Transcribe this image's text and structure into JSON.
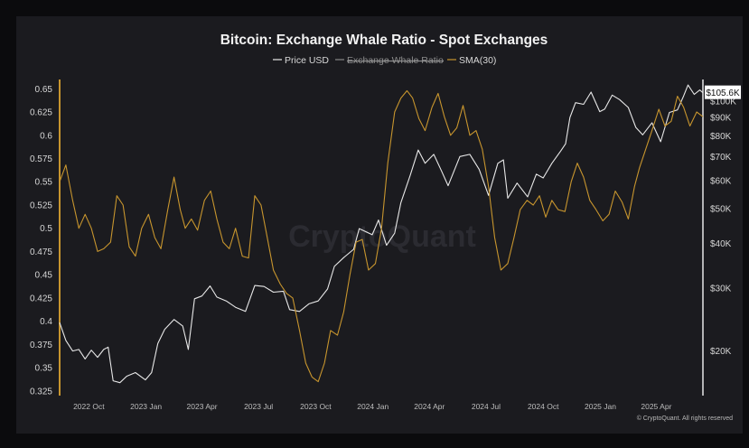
{
  "chart_data": {
    "type": "line",
    "title": "Bitcoin: Exchange Whale Ratio - Spot Exchanges",
    "legend": {
      "placement": "top-center",
      "items": [
        {
          "label": "Price USD",
          "color": "#e8e8e8",
          "struck": false
        },
        {
          "label": "Exchange Whale Ratio",
          "color": "#7a7a7a",
          "struck": true
        },
        {
          "label": "SMA(30)",
          "color": "#c7952e",
          "struck": false
        }
      ]
    },
    "x_axis": {
      "type": "date",
      "range": [
        "2022-08-15",
        "2025-06-15"
      ],
      "ticks": [
        {
          "date": "2022-10-01",
          "label": "2022 Oct"
        },
        {
          "date": "2023-01-01",
          "label": "2023 Jan"
        },
        {
          "date": "2023-04-01",
          "label": "2023 Apr"
        },
        {
          "date": "2023-07-01",
          "label": "2023 Jul"
        },
        {
          "date": "2023-10-01",
          "label": "2023 Oct"
        },
        {
          "date": "2024-01-01",
          "label": "2024 Jan"
        },
        {
          "date": "2024-04-01",
          "label": "2024 Apr"
        },
        {
          "date": "2024-07-01",
          "label": "2024 Jul"
        },
        {
          "date": "2024-10-01",
          "label": "2024 Oct"
        },
        {
          "date": "2025-01-01",
          "label": "2025 Jan"
        },
        {
          "date": "2025-04-01",
          "label": "2025 Apr"
        }
      ]
    },
    "y_left": {
      "label": "",
      "range": [
        0.32,
        0.66
      ],
      "ticks": [
        "0.65",
        "0.625",
        "0.6",
        "0.575",
        "0.55",
        "0.525",
        "0.5",
        "0.475",
        "0.45",
        "0.425",
        "0.4",
        "0.375",
        "0.35",
        "0.325"
      ]
    },
    "y_right": {
      "label": "",
      "scale": "log",
      "range": [
        15000,
        115000
      ],
      "ticks": [
        {
          "value": 20000,
          "label": "$20K"
        },
        {
          "value": 30000,
          "label": "$30K"
        },
        {
          "value": 40000,
          "label": "$40K"
        },
        {
          "value": 50000,
          "label": "$50K"
        },
        {
          "value": 60000,
          "label": "$60K"
        },
        {
          "value": 70000,
          "label": "$70K"
        },
        {
          "value": 80000,
          "label": "$80K"
        },
        {
          "value": 90000,
          "label": "$90K"
        },
        {
          "value": 100000,
          "label": "$100K"
        }
      ],
      "current_label": "$105.6K",
      "current_value": 105600
    },
    "grid": false,
    "series": [
      {
        "name": "Price USD",
        "axis": "right",
        "color": "#e8e8e8",
        "points": [
          [
            "2022-08-15",
            24000
          ],
          [
            "2022-08-25",
            21400
          ],
          [
            "2022-09-05",
            20000
          ],
          [
            "2022-09-15",
            20200
          ],
          [
            "2022-09-25",
            19000
          ],
          [
            "2022-10-05",
            20100
          ],
          [
            "2022-10-15",
            19200
          ],
          [
            "2022-10-25",
            20200
          ],
          [
            "2022-11-01",
            20500
          ],
          [
            "2022-11-09",
            16500
          ],
          [
            "2022-11-20",
            16300
          ],
          [
            "2022-12-01",
            17000
          ],
          [
            "2022-12-15",
            17400
          ],
          [
            "2022-12-31",
            16600
          ],
          [
            "2023-01-10",
            17400
          ],
          [
            "2023-01-20",
            21000
          ],
          [
            "2023-01-31",
            23000
          ],
          [
            "2023-02-15",
            24500
          ],
          [
            "2023-03-01",
            23500
          ],
          [
            "2023-03-10",
            20200
          ],
          [
            "2023-03-20",
            28000
          ],
          [
            "2023-04-01",
            28500
          ],
          [
            "2023-04-14",
            30400
          ],
          [
            "2023-04-25",
            28300
          ],
          [
            "2023-05-10",
            27600
          ],
          [
            "2023-05-25",
            26500
          ],
          [
            "2023-06-10",
            25800
          ],
          [
            "2023-06-25",
            30500
          ],
          [
            "2023-07-10",
            30300
          ],
          [
            "2023-07-25",
            29200
          ],
          [
            "2023-08-10",
            29400
          ],
          [
            "2023-08-20",
            26100
          ],
          [
            "2023-09-05",
            25800
          ],
          [
            "2023-09-20",
            27100
          ],
          [
            "2023-10-05",
            27600
          ],
          [
            "2023-10-20",
            29800
          ],
          [
            "2023-10-31",
            34500
          ],
          [
            "2023-11-15",
            36500
          ],
          [
            "2023-12-01",
            38500
          ],
          [
            "2023-12-10",
            44000
          ],
          [
            "2023-12-31",
            42300
          ],
          [
            "2024-01-10",
            46500
          ],
          [
            "2024-01-23",
            39500
          ],
          [
            "2024-02-05",
            42700
          ],
          [
            "2024-02-15",
            52000
          ],
          [
            "2024-03-01",
            62000
          ],
          [
            "2024-03-14",
            73000
          ],
          [
            "2024-03-25",
            67000
          ],
          [
            "2024-04-08",
            71000
          ],
          [
            "2024-04-20",
            64000
          ],
          [
            "2024-05-01",
            58000
          ],
          [
            "2024-05-20",
            70000
          ],
          [
            "2024-06-05",
            71000
          ],
          [
            "2024-06-20",
            64500
          ],
          [
            "2024-07-05",
            54500
          ],
          [
            "2024-07-20",
            67000
          ],
          [
            "2024-07-29",
            68500
          ],
          [
            "2024-08-05",
            53500
          ],
          [
            "2024-08-20",
            59000
          ],
          [
            "2024-09-06",
            54000
          ],
          [
            "2024-09-20",
            62500
          ],
          [
            "2024-10-01",
            61000
          ],
          [
            "2024-10-15",
            67000
          ],
          [
            "2024-10-29",
            72500
          ],
          [
            "2024-11-06",
            76000
          ],
          [
            "2024-11-13",
            90000
          ],
          [
            "2024-11-22",
            99000
          ],
          [
            "2024-12-05",
            98000
          ],
          [
            "2024-12-17",
            106000
          ],
          [
            "2024-12-31",
            93500
          ],
          [
            "2025-01-08",
            95000
          ],
          [
            "2025-01-20",
            104000
          ],
          [
            "2025-02-01",
            101000
          ],
          [
            "2025-02-15",
            96000
          ],
          [
            "2025-02-27",
            84500
          ],
          [
            "2025-03-10",
            80500
          ],
          [
            "2025-03-25",
            87000
          ],
          [
            "2025-04-08",
            77000
          ],
          [
            "2025-04-22",
            93000
          ],
          [
            "2025-05-05",
            94500
          ],
          [
            "2025-05-15",
            103500
          ],
          [
            "2025-05-22",
            111000
          ],
          [
            "2025-06-01",
            104500
          ],
          [
            "2025-06-10",
            107500
          ],
          [
            "2025-06-15",
            105600
          ]
        ]
      },
      {
        "name": "SMA(30)",
        "axis": "left",
        "color": "#c7952e",
        "points": [
          [
            "2022-08-15",
            0.55
          ],
          [
            "2022-08-25",
            0.568
          ],
          [
            "2022-09-05",
            0.53
          ],
          [
            "2022-09-15",
            0.5
          ],
          [
            "2022-09-25",
            0.515
          ],
          [
            "2022-10-05",
            0.5
          ],
          [
            "2022-10-15",
            0.475
          ],
          [
            "2022-10-25",
            0.478
          ],
          [
            "2022-11-05",
            0.485
          ],
          [
            "2022-11-15",
            0.535
          ],
          [
            "2022-11-25",
            0.525
          ],
          [
            "2022-12-05",
            0.48
          ],
          [
            "2022-12-15",
            0.47
          ],
          [
            "2022-12-25",
            0.5
          ],
          [
            "2023-01-05",
            0.515
          ],
          [
            "2023-01-15",
            0.49
          ],
          [
            "2023-01-25",
            0.478
          ],
          [
            "2023-02-05",
            0.52
          ],
          [
            "2023-02-15",
            0.555
          ],
          [
            "2023-02-25",
            0.52
          ],
          [
            "2023-03-05",
            0.5
          ],
          [
            "2023-03-15",
            0.51
          ],
          [
            "2023-03-25",
            0.498
          ],
          [
            "2023-04-05",
            0.53
          ],
          [
            "2023-04-15",
            0.54
          ],
          [
            "2023-04-25",
            0.51
          ],
          [
            "2023-05-05",
            0.485
          ],
          [
            "2023-05-15",
            0.478
          ],
          [
            "2023-05-25",
            0.5
          ],
          [
            "2023-06-05",
            0.47
          ],
          [
            "2023-06-15",
            0.468
          ],
          [
            "2023-06-25",
            0.535
          ],
          [
            "2023-07-05",
            0.525
          ],
          [
            "2023-07-15",
            0.49
          ],
          [
            "2023-07-25",
            0.455
          ],
          [
            "2023-08-05",
            0.44
          ],
          [
            "2023-08-15",
            0.43
          ],
          [
            "2023-08-25",
            0.425
          ],
          [
            "2023-09-05",
            0.39
          ],
          [
            "2023-09-15",
            0.355
          ],
          [
            "2023-09-25",
            0.34
          ],
          [
            "2023-10-05",
            0.335
          ],
          [
            "2023-10-15",
            0.355
          ],
          [
            "2023-10-25",
            0.39
          ],
          [
            "2023-11-05",
            0.385
          ],
          [
            "2023-11-15",
            0.41
          ],
          [
            "2023-11-25",
            0.45
          ],
          [
            "2023-12-05",
            0.485
          ],
          [
            "2023-12-15",
            0.488
          ],
          [
            "2023-12-25",
            0.455
          ],
          [
            "2024-01-05",
            0.462
          ],
          [
            "2024-01-15",
            0.5
          ],
          [
            "2024-01-25",
            0.57
          ],
          [
            "2024-02-05",
            0.625
          ],
          [
            "2024-02-15",
            0.64
          ],
          [
            "2024-02-25",
            0.648
          ],
          [
            "2024-03-05",
            0.64
          ],
          [
            "2024-03-15",
            0.618
          ],
          [
            "2024-03-25",
            0.605
          ],
          [
            "2024-04-05",
            0.63
          ],
          [
            "2024-04-15",
            0.645
          ],
          [
            "2024-04-25",
            0.62
          ],
          [
            "2024-05-05",
            0.6
          ],
          [
            "2024-05-15",
            0.608
          ],
          [
            "2024-05-25",
            0.632
          ],
          [
            "2024-06-05",
            0.6
          ],
          [
            "2024-06-15",
            0.605
          ],
          [
            "2024-06-25",
            0.585
          ],
          [
            "2024-07-05",
            0.545
          ],
          [
            "2024-07-15",
            0.49
          ],
          [
            "2024-07-25",
            0.455
          ],
          [
            "2024-08-05",
            0.462
          ],
          [
            "2024-08-15",
            0.49
          ],
          [
            "2024-08-25",
            0.52
          ],
          [
            "2024-09-05",
            0.53
          ],
          [
            "2024-09-15",
            0.525
          ],
          [
            "2024-09-25",
            0.535
          ],
          [
            "2024-10-05",
            0.512
          ],
          [
            "2024-10-15",
            0.53
          ],
          [
            "2024-10-25",
            0.52
          ],
          [
            "2024-11-05",
            0.518
          ],
          [
            "2024-11-15",
            0.55
          ],
          [
            "2024-11-25",
            0.57
          ],
          [
            "2024-12-05",
            0.555
          ],
          [
            "2024-12-15",
            0.53
          ],
          [
            "2024-12-25",
            0.52
          ],
          [
            "2025-01-05",
            0.508
          ],
          [
            "2025-01-15",
            0.515
          ],
          [
            "2025-01-25",
            0.54
          ],
          [
            "2025-02-05",
            0.528
          ],
          [
            "2025-02-15",
            0.51
          ],
          [
            "2025-02-25",
            0.545
          ],
          [
            "2025-03-05",
            0.565
          ],
          [
            "2025-03-15",
            0.585
          ],
          [
            "2025-03-25",
            0.605
          ],
          [
            "2025-04-05",
            0.628
          ],
          [
            "2025-04-15",
            0.61
          ],
          [
            "2025-04-25",
            0.615
          ],
          [
            "2025-05-05",
            0.642
          ],
          [
            "2025-05-15",
            0.63
          ],
          [
            "2025-05-25",
            0.61
          ],
          [
            "2025-06-05",
            0.625
          ],
          [
            "2025-06-15",
            0.62
          ]
        ]
      }
    ],
    "watermark": "CryptoQuant",
    "credit": "© CryptoQuant. All rights reserved"
  }
}
